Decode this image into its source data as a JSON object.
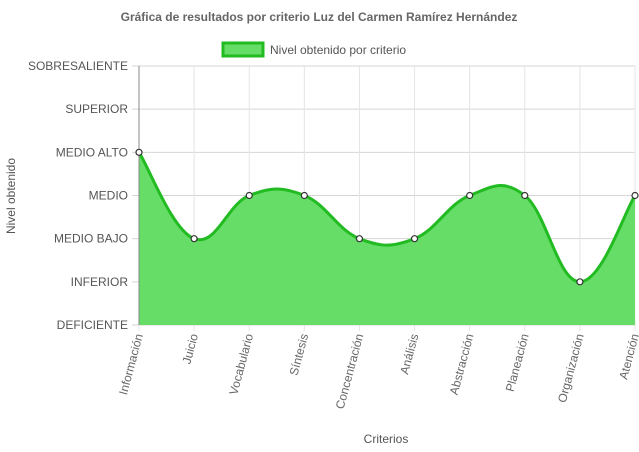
{
  "chart_data": {
    "type": "area",
    "title": "Gráfica de resultados por criterio Luz del Carmen Ramírez Hernández",
    "xlabel": "Criterios",
    "ylabel": "Nivel obtenido",
    "levels": [
      "DEFICIENTE",
      "INFERIOR",
      "MEDIO BAJO",
      "MEDIO",
      "MEDIO ALTO",
      "SUPERIOR",
      "SOBRESALIENTE"
    ],
    "categories": [
      "Información",
      "Juicio",
      "Vocabulario",
      "Síntesis",
      "Concentración",
      "Análisis",
      "Abstracción",
      "Planeación",
      "Organización",
      "Atención"
    ],
    "series": [
      {
        "name": "Nivel obtenido por criterio",
        "values": [
          4,
          2,
          3,
          3,
          2,
          2,
          3,
          3,
          1,
          3
        ],
        "labels": [
          "MEDIO ALTO",
          "MEDIO BAJO",
          "MEDIO",
          "MEDIO",
          "MEDIO BAJO",
          "MEDIO BAJO",
          "MEDIO",
          "MEDIO",
          "INFERIOR",
          "MEDIO"
        ]
      }
    ],
    "ylim": [
      0,
      6
    ],
    "grid": true,
    "legend": "top-center",
    "colors": {
      "fill": "#66dd66",
      "line": "#22bb22",
      "point_fill": "#ffffff",
      "point_stroke": "#333333"
    }
  }
}
